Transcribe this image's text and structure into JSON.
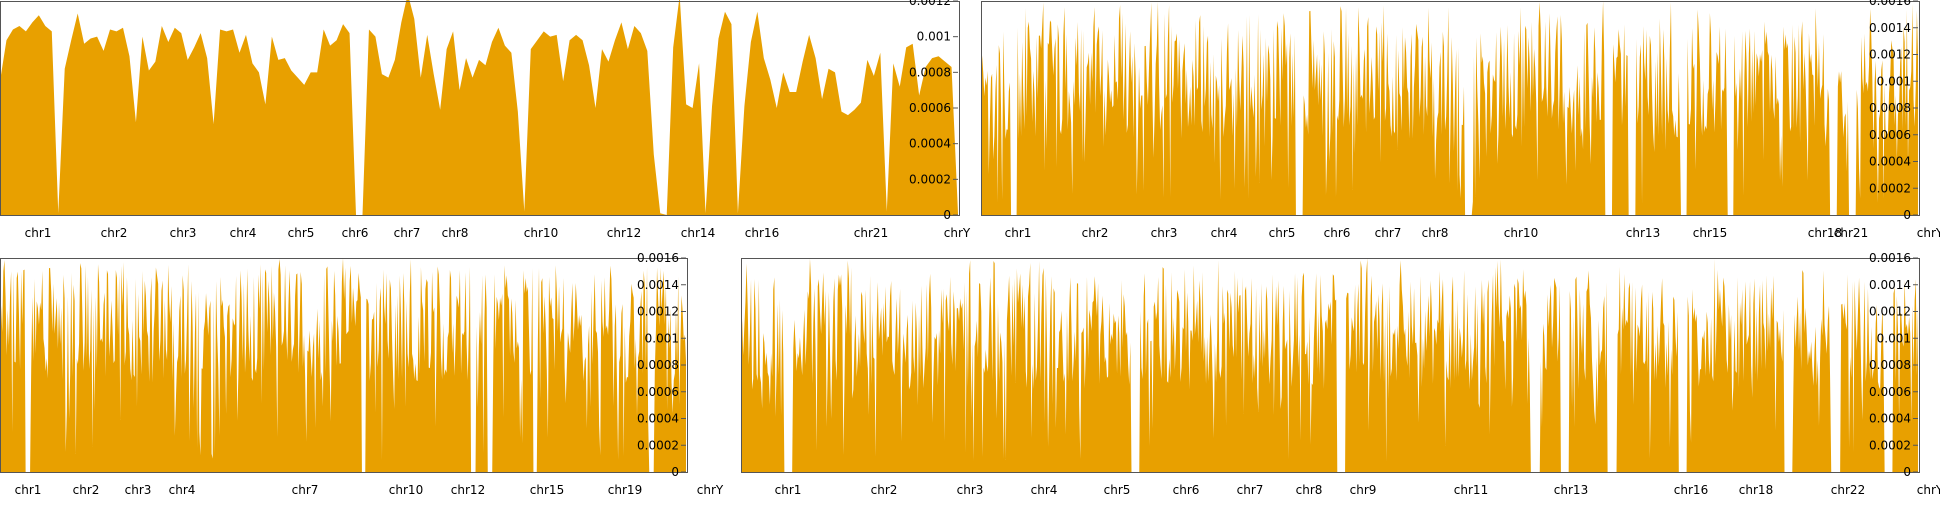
{
  "colors": {
    "fill": "#E8A000",
    "axis": "#555555",
    "text": "#000000"
  },
  "chart_data": [
    {
      "type": "area",
      "panel": "top-left",
      "ylim": [
        0,
        0.0012
      ],
      "y_ticks": [
        "0",
        "0.0002",
        "0.0004",
        "0.0006",
        "0.0008",
        "0.001",
        "0.0012"
      ],
      "x_labels": [
        "chr1",
        "chr2",
        "chr3",
        "chr4",
        "chr5",
        "chr6",
        "chr7",
        "chr8",
        "chr10",
        "chr12",
        "chr14",
        "chr16",
        "chr21",
        "chrY"
      ],
      "values": [
        0.00075,
        0.00098,
        0.00104,
        0.00106,
        0.00103,
        0.00108,
        0.00112,
        0.00106,
        0.00103,
        1e-05,
        0.00082,
        0.00098,
        0.00113,
        0.00096,
        0.00099,
        0.001,
        0.00092,
        0.00104,
        0.00103,
        0.00105,
        0.00089,
        0.00052,
        0.001,
        0.00081,
        0.00086,
        0.00106,
        0.00097,
        0.00105,
        0.00102,
        0.00087,
        0.00094,
        0.00102,
        0.00088,
        0.00051,
        0.00104,
        0.00103,
        0.00104,
        0.00091,
        0.00101,
        0.00085,
        0.0008,
        0.00062,
        0.001,
        0.00087,
        0.00088,
        0.00081,
        0.00077,
        0.00073,
        0.0008,
        0.0008,
        0.00104,
        0.00095,
        0.00098,
        0.00107,
        0.00102,
        0.0,
        0.0,
        0.00104,
        0.001,
        0.00079,
        0.00077,
        0.00087,
        0.00108,
        0.00124,
        0.0011,
        0.00077,
        0.00101,
        0.00079,
        0.00059,
        0.00093,
        0.00103,
        0.0007,
        0.00088,
        0.00077,
        0.00087,
        0.00084,
        0.00097,
        0.00105,
        0.00095,
        0.00091,
        0.00058,
        2e-05,
        0.00093,
        0.00098,
        0.00103,
        0.001,
        0.00101,
        0.00075,
        0.00098,
        0.00101,
        0.00098,
        0.00084,
        0.0006,
        0.00093,
        0.00086,
        0.00098,
        0.00108,
        0.00093,
        0.00106,
        0.00102,
        0.00092,
        0.00034,
        1e-05,
        0.0,
        0.00094,
        0.00123,
        0.00062,
        0.0006,
        0.00085,
        1e-05,
        0.00061,
        0.00099,
        0.00114,
        0.00107,
        1e-05,
        0.00061,
        0.00097,
        0.00114,
        0.00088,
        0.00076,
        0.0006,
        0.0008,
        0.00069,
        0.00069,
        0.00086,
        0.00101,
        0.00088,
        0.00065,
        0.00082,
        0.0008,
        0.00058,
        0.00056,
        0.00059,
        0.00063,
        0.00087,
        0.00078,
        0.00091,
        2e-05,
        0.00085,
        0.00072,
        0.00094,
        0.00096,
        0.00067,
        0.00083,
        0.00088,
        0.00089,
        0.00086,
        0.00083,
        1e-05
      ]
    },
    {
      "type": "area",
      "panel": "top-right",
      "ylim": [
        0,
        0.0016
      ],
      "y_ticks": [
        "0",
        "0.0002",
        "0.0004",
        "0.0006",
        "0.0008",
        "0.001",
        "0.0012",
        "0.0014",
        "0.0016"
      ],
      "x_labels": [
        "chr1",
        "chr2",
        "chr3",
        "chr4",
        "chr5",
        "chr6",
        "chr7",
        "chr8",
        "chr10",
        "chr13",
        "chr15",
        "chr18",
        "chr21",
        "chrY"
      ],
      "values_seed": 2,
      "gaps_fraction": [
        0.035,
        0.34,
        0.52,
        0.67,
        0.695,
        0.75,
        0.8,
        0.91,
        0.93
      ],
      "mean_level": 0.00105
    },
    {
      "type": "area",
      "panel": "bottom-left",
      "ylim": [
        0,
        0.0016
      ],
      "y_ticks": [
        "0",
        "0.0002",
        "0.0004",
        "0.0006",
        "0.0008",
        "0.001",
        "0.0012",
        "0.0014",
        "0.0016"
      ],
      "x_labels": [
        "chr1",
        "chr2",
        "chr3",
        "chr4",
        "chr7",
        "chr10",
        "chr12",
        "chr15",
        "chr19",
        "chrY"
      ],
      "values_seed": 3,
      "gaps_fraction": [
        0.04,
        0.53,
        0.69,
        0.715,
        0.78,
        0.95
      ],
      "mean_level": 0.00115
    },
    {
      "type": "area",
      "panel": "bottom-right",
      "ylim": [
        0,
        0.0016
      ],
      "y_ticks": [
        "0",
        "0.0002",
        "0.0004",
        "0.0006",
        "0.0008",
        "0.001",
        "0.0012",
        "0.0014",
        "0.0016"
      ],
      "x_labels": [
        "chr1",
        "chr2",
        "chr3",
        "chr4",
        "chr5",
        "chr6",
        "chr7",
        "chr8",
        "chr9",
        "chr11",
        "chr13",
        "chr16",
        "chr18",
        "chr22",
        "chrY"
      ],
      "values_seed": 4,
      "gaps_fraction": [
        0.04,
        0.335,
        0.51,
        0.675,
        0.7,
        0.74,
        0.8,
        0.89,
        0.93,
        0.975
      ],
      "mean_level": 0.0011
    }
  ]
}
